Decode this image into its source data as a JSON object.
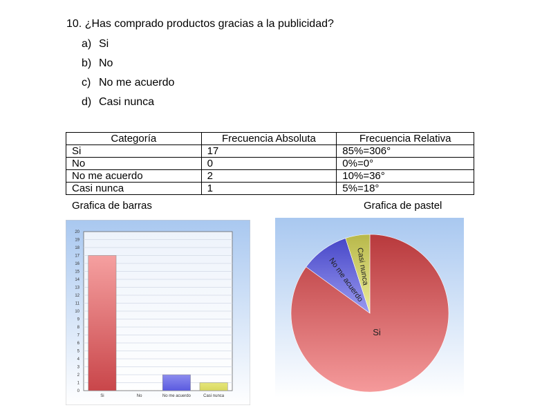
{
  "question": {
    "number": "10.",
    "text": "¿Has comprado productos gracias a la publicidad?",
    "options": [
      {
        "letter": "a)",
        "text": "Si"
      },
      {
        "letter": "b)",
        "text": "No"
      },
      {
        "letter": "c)",
        "text": "No me acuerdo"
      },
      {
        "letter": "d)",
        "text": "Casi nunca"
      }
    ]
  },
  "table": {
    "headers": [
      "Categoría",
      "Frecuencia Absoluta",
      "Frecuencia Relativa"
    ],
    "rows": [
      [
        "Si",
        "17",
        "85%=306°"
      ],
      [
        "No",
        "0",
        "0%=0°"
      ],
      [
        "No me acuerdo",
        "2",
        "10%=36°"
      ],
      [
        "Casi nunca",
        "1",
        "5%=18°"
      ]
    ]
  },
  "captions": {
    "bar": "Grafica de barras",
    "pie": "Grafica de pastel"
  },
  "chart_data": [
    {
      "type": "bar",
      "categories": [
        "Si",
        "No",
        "No me acuerdo",
        "Casi nunca"
      ],
      "values": [
        17,
        0,
        2,
        1
      ],
      "colors": [
        "#c9464a",
        "#d04848",
        "#5a5ae0",
        "#d8d860"
      ],
      "ylim": [
        0,
        20
      ],
      "yticks": [
        "0",
        "1",
        "2",
        "3",
        "4",
        "5",
        "6",
        "7",
        "8",
        "9",
        "10",
        "11",
        "12",
        "13",
        "14",
        "15",
        "16",
        "17",
        "18",
        "19",
        "20"
      ],
      "grid": true,
      "title": "",
      "xlabel": "",
      "ylabel": ""
    },
    {
      "type": "pie",
      "labels": [
        "Si",
        "No me acuerdo",
        "Casi nunca"
      ],
      "values": [
        85,
        10,
        5
      ],
      "colors": [
        "#e05a5c",
        "#6c6ce8",
        "#d9d96a"
      ]
    }
  ]
}
